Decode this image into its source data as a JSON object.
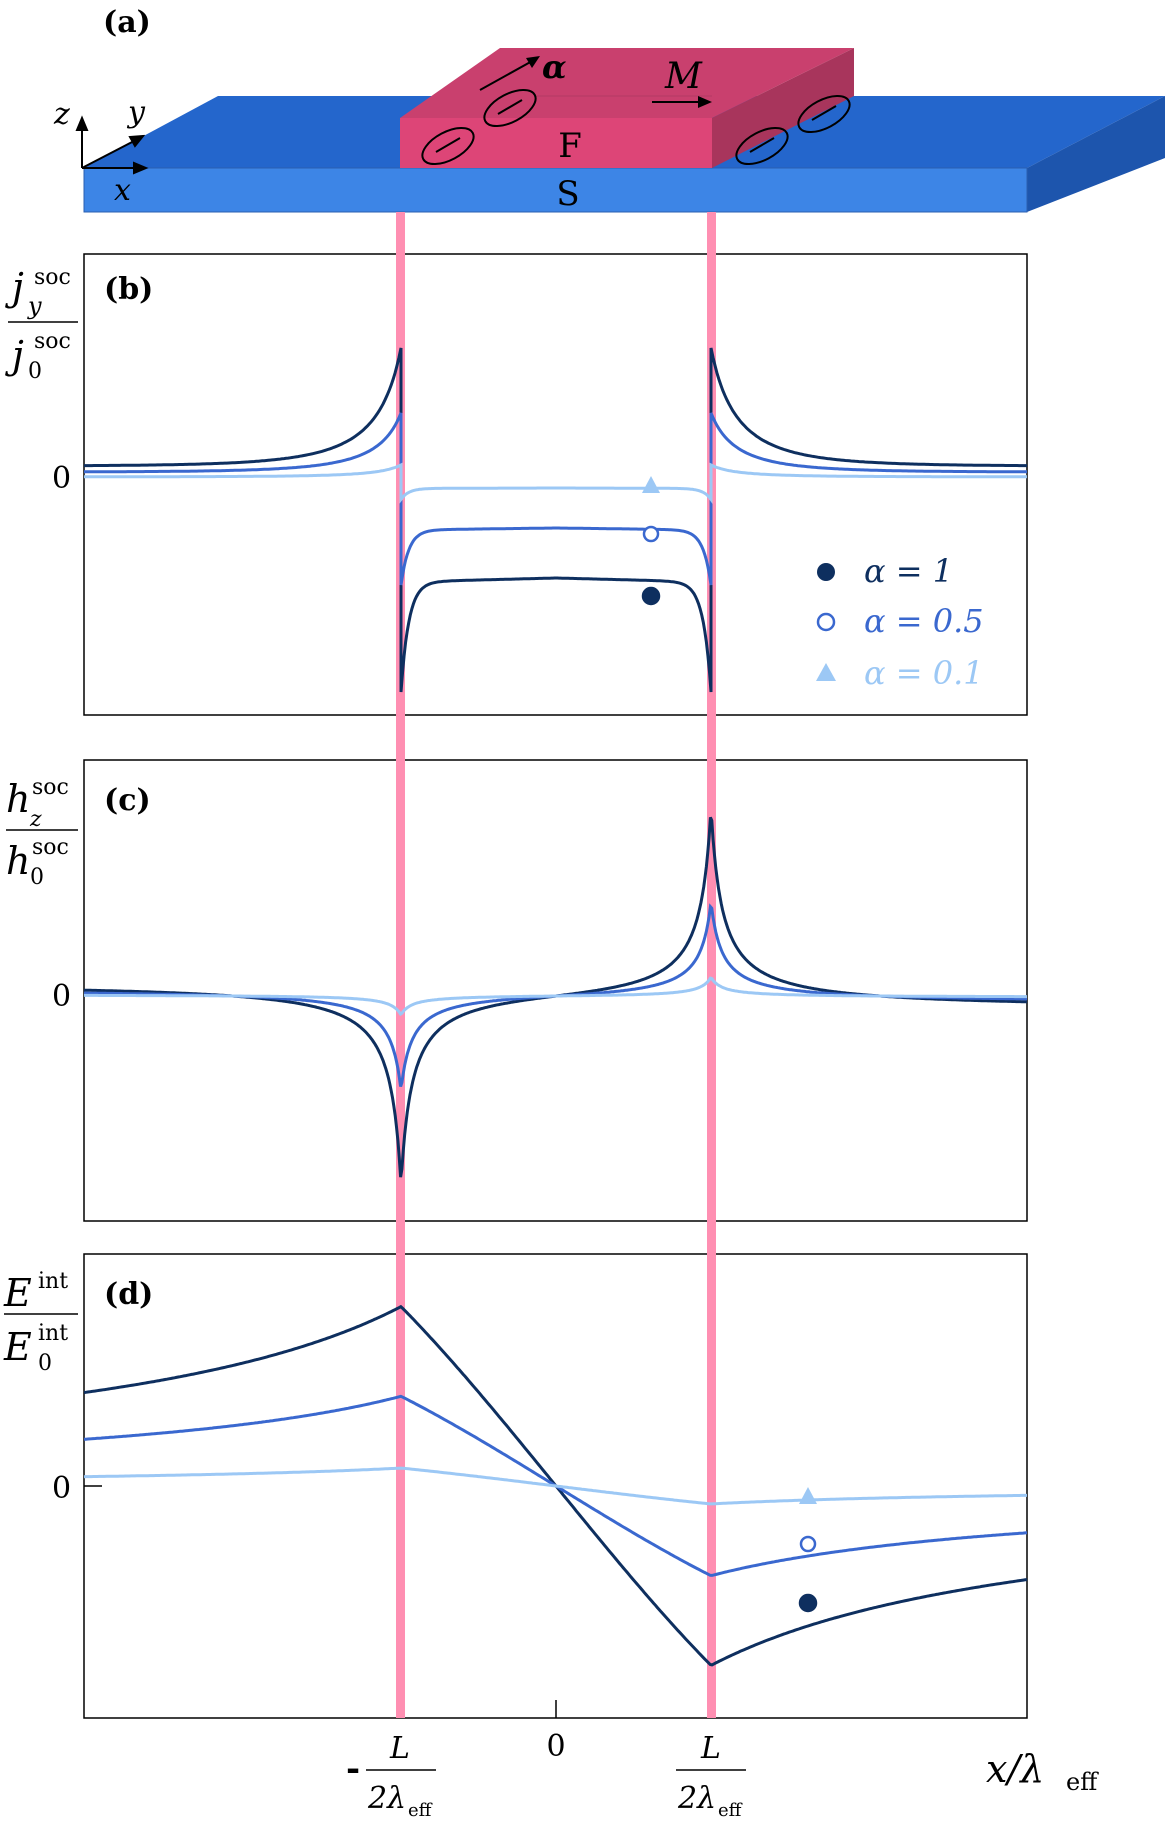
{
  "panel_labels": {
    "a": "(a)",
    "b": "(b)",
    "c": "(c)",
    "d": "(d)"
  },
  "schematic": {
    "ferromagnet_label": "F",
    "superconductor_label": "S",
    "magnetization_label": "M",
    "alpha_label": "α",
    "axis_x": "x",
    "axis_y": "y",
    "axis_z": "z"
  },
  "axis": {
    "x_tick_left_prefix": "-",
    "x_tick_zero": "0",
    "x_tick_L": "L",
    "x_tick_lambda": "2λ",
    "x_tick_eff": "eff",
    "x_label_main": "x/λ",
    "x_label_sub": "eff"
  },
  "ylabels": {
    "b": {
      "num": "j",
      "num_sub": "y",
      "den": "j",
      "den_sub": "0",
      "sup": "soc",
      "zero": "0"
    },
    "c": {
      "num": "h",
      "num_sub": "z",
      "den": "h",
      "den_sub": "0",
      "sup": "soc",
      "zero": "0"
    },
    "d": {
      "num": "E",
      "den": "E",
      "den_sub": "0",
      "sup": "int",
      "zero": "0"
    }
  },
  "legend": [
    {
      "label": "α = 1",
      "marker": "filled-circle",
      "color": "#0e2f5f"
    },
    {
      "label": "α = 0.5",
      "marker": "open-circle",
      "color": "#3a68cf"
    },
    {
      "label": "α = 0.1",
      "marker": "triangle",
      "color": "#9cc8f5"
    }
  ],
  "colors": {
    "alpha1": "#0e2f5f",
    "alpha05": "#3a68cf",
    "alpha01": "#9cc8f5",
    "interface": "#ff8fb2",
    "ferromagnet": "#dd4577",
    "superconductor": "#3d85e6"
  },
  "chart_data": [
    {
      "type": "line",
      "panel": "(b)",
      "x_range": [
        -1.5,
        1.5
      ],
      "interfaces": [
        -0.5,
        0.5
      ],
      "series": [
        {
          "name": "α = 1",
          "alpha": 1.0
        },
        {
          "name": "α = 0.5",
          "alpha": 0.5
        },
        {
          "name": "α = 0.1",
          "alpha": 0.1
        }
      ]
    },
    {
      "type": "line",
      "panel": "(c)",
      "x_range": [
        -1.5,
        1.5
      ],
      "interfaces": [
        -0.5,
        0.5
      ],
      "series": [
        {
          "name": "α = 1",
          "alpha": 1.0
        },
        {
          "name": "α = 0.5",
          "alpha": 0.5
        },
        {
          "name": "α = 0.1",
          "alpha": 0.1
        }
      ]
    },
    {
      "type": "line",
      "panel": "(d)",
      "x_range": [
        -1.5,
        1.5
      ],
      "interfaces": [
        -0.5,
        0.5
      ],
      "series": [
        {
          "name": "α = 1",
          "alpha": 1.0
        },
        {
          "name": "α = 0.5",
          "alpha": 0.5
        },
        {
          "name": "α = 0.1",
          "alpha": 0.1
        }
      ]
    }
  ]
}
